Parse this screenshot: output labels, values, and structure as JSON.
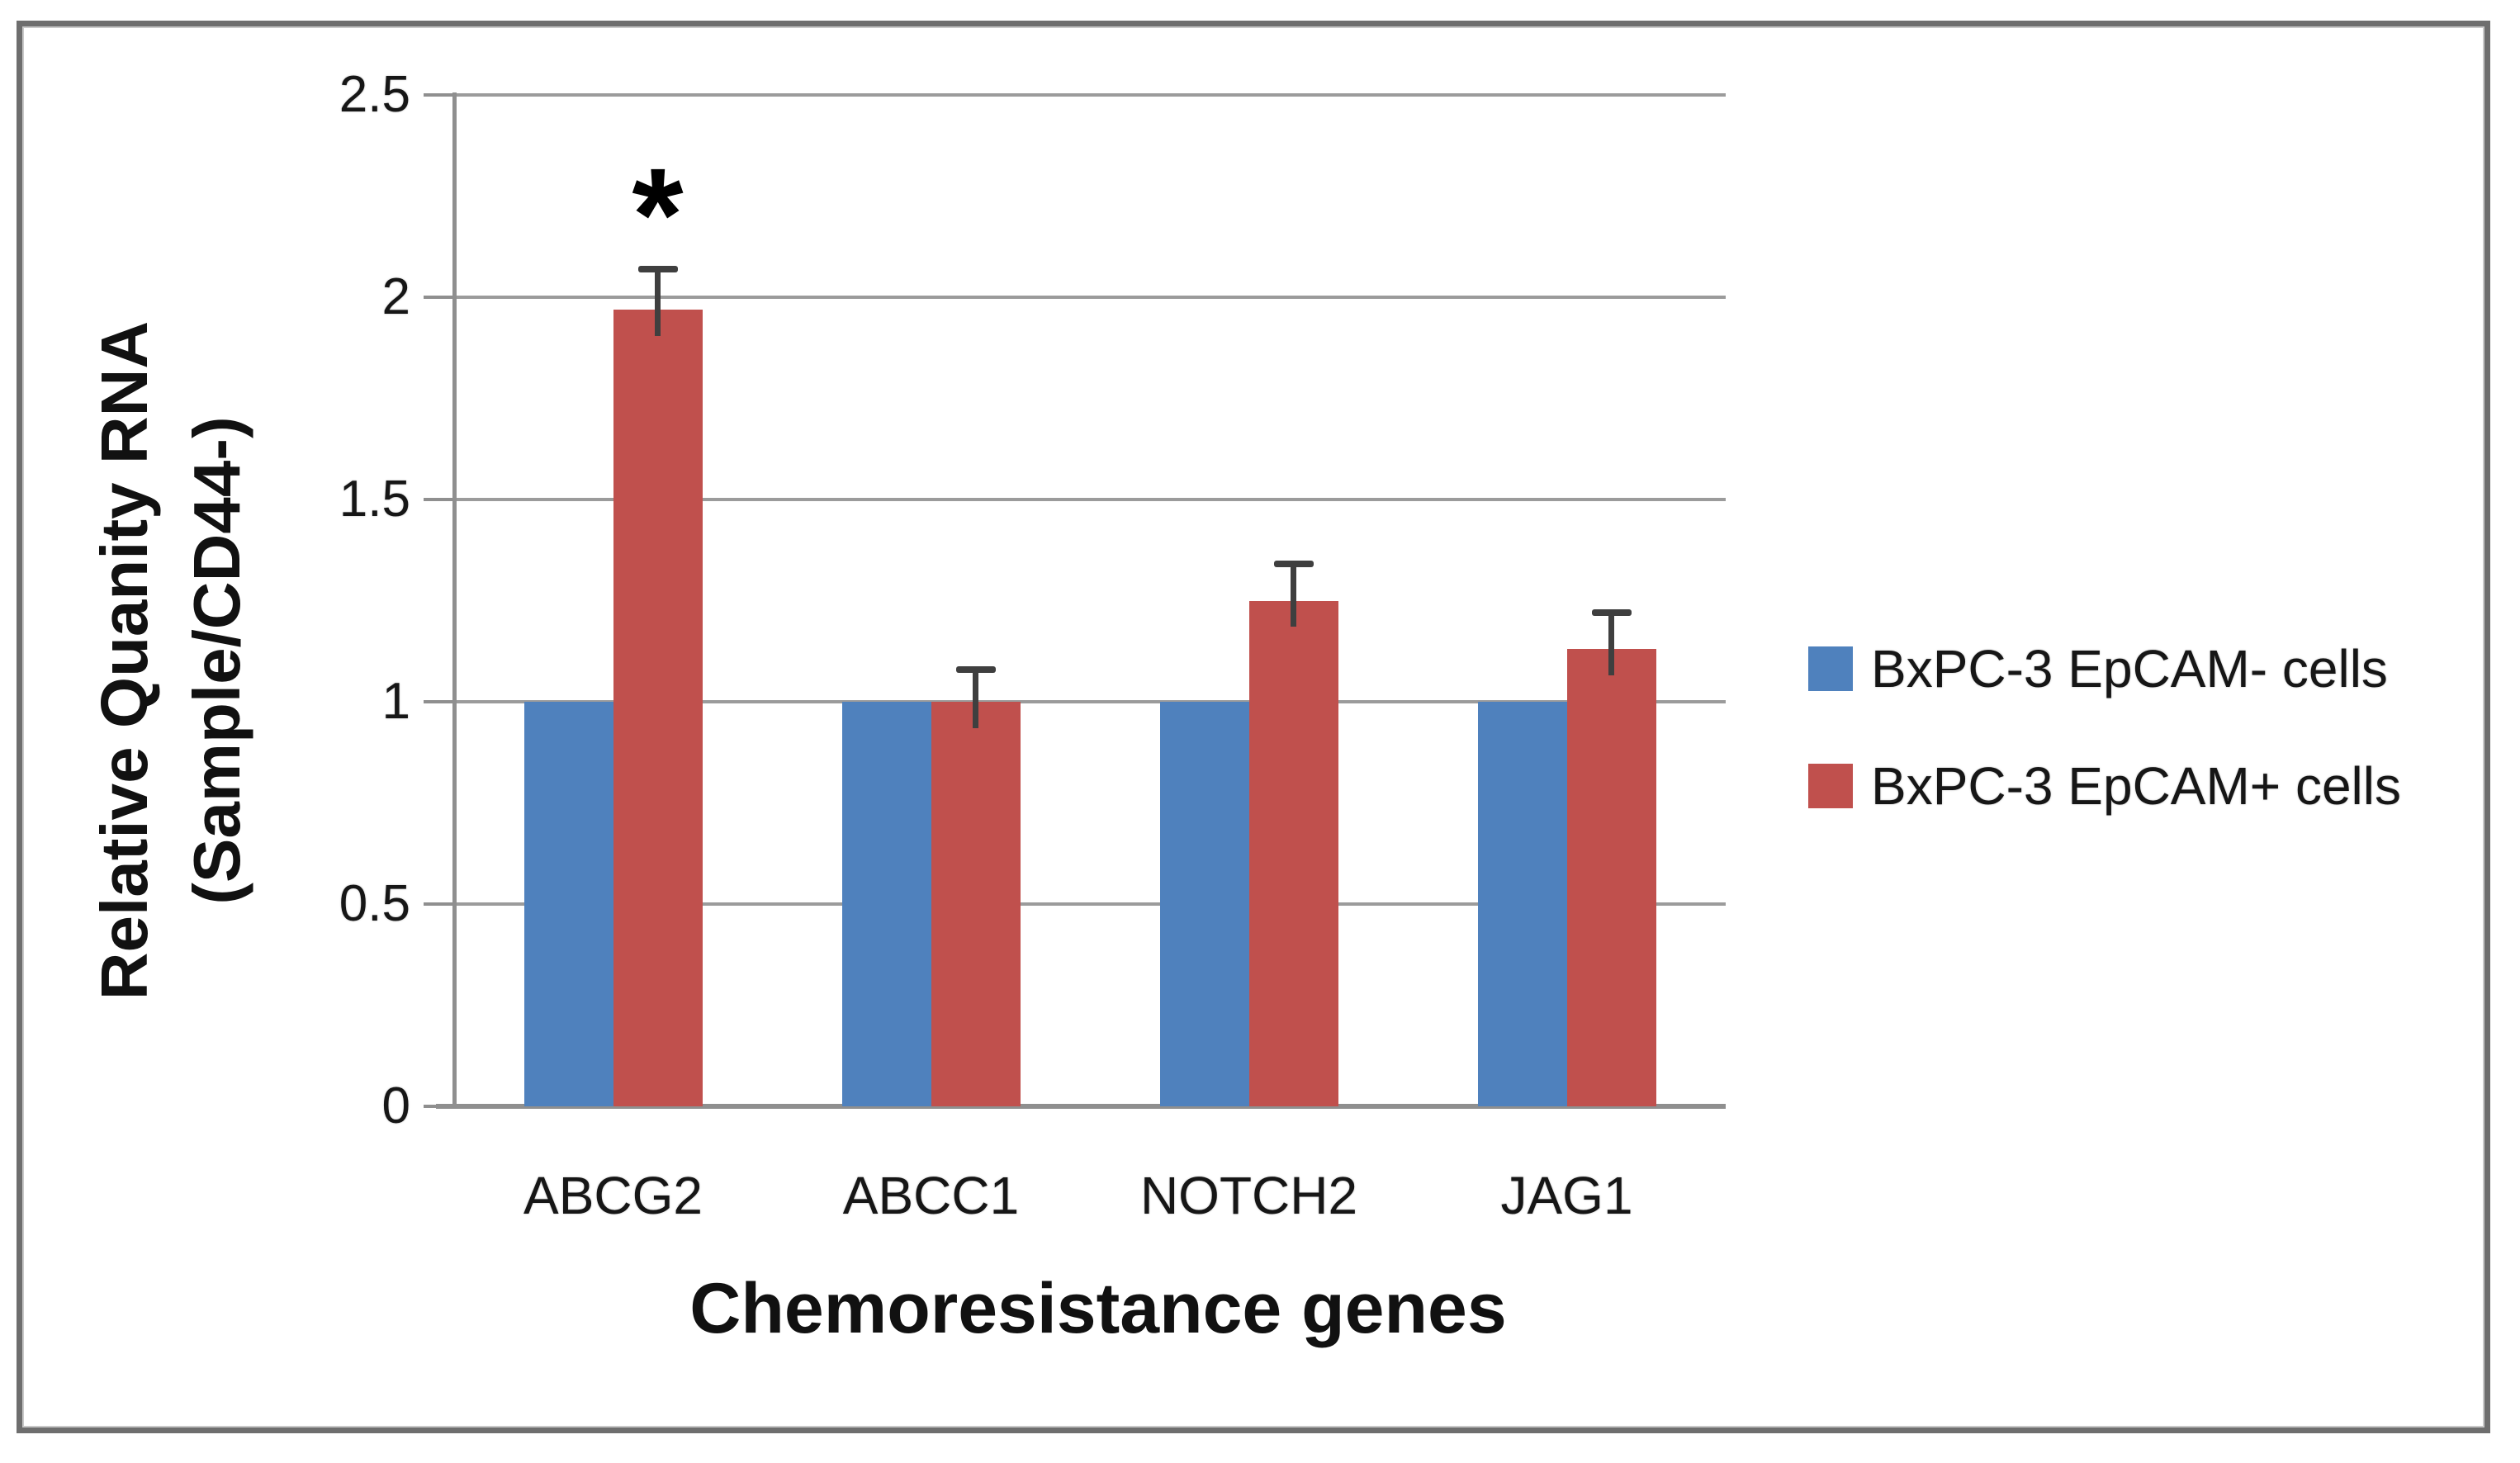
{
  "figure": {
    "kind": "statistical bar chart figure",
    "significance_marker": "*"
  },
  "chart_data": {
    "type": "bar",
    "title": "",
    "categories": [
      "ABCG2",
      "ABCC1",
      "NOTCH2",
      "JAG1"
    ],
    "series": [
      {
        "name": "BxPC-3 EpCAM- cells",
        "slug": "epcam-minus",
        "color": "#4F81BD",
        "values": [
          1,
          1,
          1,
          1
        ],
        "errors_up": [
          0,
          0,
          0,
          0
        ]
      },
      {
        "name": "BxPC-3 EpCAM+ cells",
        "slug": "epcam-plus",
        "color": "#C0504D",
        "values": [
          1.97,
          1.0,
          1.25,
          1.13
        ],
        "errors_up": [
          0.1,
          0.08,
          0.09,
          0.09
        ]
      }
    ],
    "xlabel": "Chemoresistance genes",
    "ylabel": "Relative Quanity RNA (Sample/CD44-)",
    "ylabel_lines": [
      "Relative Quanity RNA",
      "(Sample/CD44-)"
    ],
    "y_ticks": [
      0,
      0.5,
      1,
      1.5,
      2,
      2.5
    ],
    "y_tick_labels": [
      "0",
      "0.5",
      "1",
      "1.5",
      "2",
      "2.5"
    ],
    "ylim": [
      0,
      2.5
    ],
    "grid": true,
    "legend_position": "right",
    "annotations": [
      {
        "text": "*",
        "category": "ABCG2",
        "series": "BxPC-3 EpCAM+ cells",
        "y": 2.23
      }
    ]
  },
  "colors": {
    "series_blue": "#4F81BD",
    "series_red": "#C0504D",
    "gridline": "#9B9B9B",
    "axis": "#8F8F8F",
    "frame_border": "#6E6E6E",
    "error_bar": "#3F3F3F",
    "text": "#1C1C1C",
    "background": "#FFFFFF"
  }
}
